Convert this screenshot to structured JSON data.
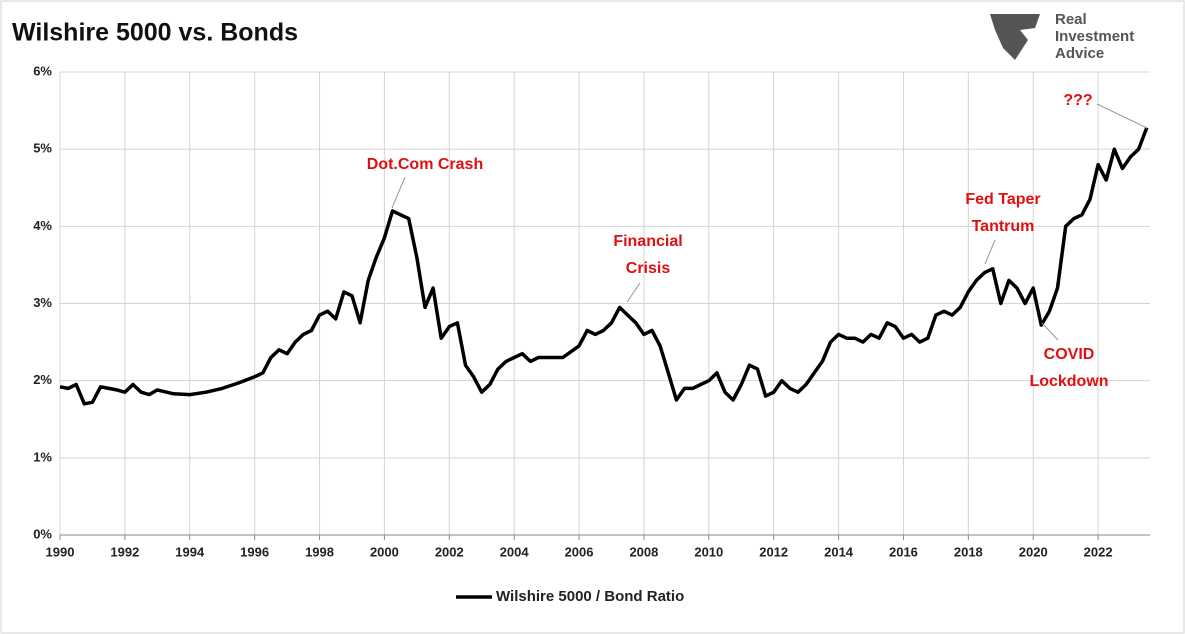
{
  "chart_data": {
    "type": "line",
    "title": "Wilshire 5000 vs. Bonds",
    "logo": [
      "Real",
      "Investment",
      "Advice"
    ],
    "x": [
      1990,
      1990.25,
      1990.5,
      1990.75,
      1991,
      1991.25,
      1991.5,
      1991.75,
      1992,
      1992.25,
      1992.5,
      1992.75,
      1993,
      1993.5,
      1994,
      1994.5,
      1995,
      1995.5,
      1996,
      1996.25,
      1996.5,
      1996.75,
      1997,
      1997.25,
      1997.5,
      1997.75,
      1998,
      1998.25,
      1998.5,
      1998.75,
      1999,
      1999.25,
      1999.5,
      1999.75,
      2000,
      2000.25,
      2000.5,
      2000.75,
      2001,
      2001.25,
      2001.5,
      2001.75,
      2002,
      2002.25,
      2002.5,
      2002.75,
      2003,
      2003.25,
      2003.5,
      2003.75,
      2004,
      2004.25,
      2004.5,
      2004.75,
      2005,
      2005.5,
      2006,
      2006.25,
      2006.5,
      2006.75,
      2007,
      2007.25,
      2007.5,
      2007.75,
      2008,
      2008.25,
      2008.5,
      2008.75,
      2009,
      2009.25,
      2009.5,
      2009.75,
      2010,
      2010.25,
      2010.5,
      2010.75,
      2011,
      2011.25,
      2011.5,
      2011.75,
      2012,
      2012.25,
      2012.5,
      2012.75,
      2013,
      2013.25,
      2013.5,
      2013.75,
      2014,
      2014.25,
      2014.5,
      2014.75,
      2015,
      2015.25,
      2015.5,
      2015.75,
      2016,
      2016.25,
      2016.5,
      2016.75,
      2017,
      2017.25,
      2017.5,
      2017.75,
      2018,
      2018.25,
      2018.5,
      2018.75,
      2019,
      2019.25,
      2019.5,
      2019.75,
      2020,
      2020.25,
      2020.5,
      2020.75,
      2021,
      2021.25,
      2021.5,
      2021.75,
      2022,
      2022.25,
      2022.5,
      2022.75,
      2023,
      2023.25,
      2023.5
    ],
    "series": [
      {
        "name": "Wilshire 5000 / Bond Ratio",
        "color": "#000000",
        "values": [
          1.92,
          1.9,
          1.95,
          1.7,
          1.72,
          1.92,
          1.9,
          1.88,
          1.85,
          1.95,
          1.85,
          1.82,
          1.88,
          1.83,
          1.82,
          1.85,
          1.9,
          1.97,
          2.05,
          2.1,
          2.3,
          2.4,
          2.35,
          2.5,
          2.6,
          2.65,
          2.85,
          2.9,
          2.8,
          3.15,
          3.1,
          2.75,
          3.3,
          3.6,
          3.85,
          4.2,
          4.15,
          4.1,
          3.6,
          2.95,
          3.2,
          2.55,
          2.7,
          2.75,
          2.2,
          2.05,
          1.85,
          1.95,
          2.15,
          2.25,
          2.3,
          2.35,
          2.25,
          2.3,
          2.3,
          2.3,
          2.45,
          2.65,
          2.6,
          2.65,
          2.75,
          2.95,
          2.85,
          2.75,
          2.6,
          2.65,
          2.45,
          2.1,
          1.75,
          1.9,
          1.9,
          1.95,
          2.0,
          2.1,
          1.85,
          1.75,
          1.95,
          2.2,
          2.15,
          1.8,
          1.85,
          2.0,
          1.9,
          1.85,
          1.95,
          2.1,
          2.25,
          2.5,
          2.6,
          2.55,
          2.55,
          2.5,
          2.6,
          2.55,
          2.75,
          2.7,
          2.55,
          2.6,
          2.5,
          2.55,
          2.85,
          2.9,
          2.85,
          2.95,
          3.15,
          3.3,
          3.4,
          3.45,
          3.0,
          3.3,
          3.2,
          3.0,
          3.2,
          2.72,
          2.9,
          3.2,
          4.0,
          4.1,
          4.15,
          4.35,
          4.8,
          4.6,
          5.0,
          4.75,
          4.9,
          5.0,
          5.28
        ]
      }
    ],
    "xlim": [
      1990,
      2023.6
    ],
    "xticks": [
      1990,
      1992,
      1994,
      1996,
      1998,
      2000,
      2002,
      2004,
      2006,
      2008,
      2010,
      2012,
      2014,
      2016,
      2018,
      2020,
      2022
    ],
    "ylim": [
      0,
      6
    ],
    "yticks": [
      {
        "value": 0,
        "label": "0%"
      },
      {
        "value": 1,
        "label": "1%"
      },
      {
        "value": 2,
        "label": "2%"
      },
      {
        "value": 3,
        "label": "3%"
      },
      {
        "value": 4,
        "label": "4%"
      },
      {
        "value": 5,
        "label": "5%"
      },
      {
        "value": 6,
        "label": "6%"
      }
    ],
    "grid": true,
    "legend": "bottom",
    "annotations": [
      {
        "text": [
          "Dot.Com Crash"
        ]
      },
      {
        "text": [
          "Financial",
          "Crisis"
        ]
      },
      {
        "text": [
          "Fed Taper",
          "Tantrum"
        ]
      },
      {
        "text": [
          "COVID",
          "Lockdown"
        ]
      },
      {
        "text": [
          "???"
        ]
      }
    ]
  }
}
